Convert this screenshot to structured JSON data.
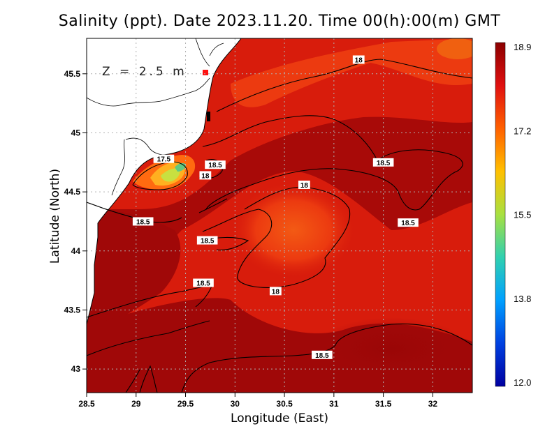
{
  "title": "Salinity (ppt). Date 2023.11.20. Time 00(h):00(m) GMT",
  "depth_label": "Z = 2.5 m",
  "x_axis": {
    "title": "Longitude (East)",
    "ticks": [
      "28.5",
      "29",
      "29.5",
      "30",
      "30.5",
      "31",
      "31.5",
      "32"
    ],
    "range": [
      28.5,
      32.4
    ]
  },
  "y_axis": {
    "title": "Latitude (North)",
    "ticks": [
      "43",
      "43.5",
      "44",
      "44.5",
      "45",
      "45.5"
    ],
    "range": [
      42.8,
      45.8
    ]
  },
  "colorbar": {
    "labels": [
      "18.9",
      "17.2",
      "15.5",
      "13.8",
      "12.0"
    ],
    "colors": [
      "#8b0000",
      "#e01010",
      "#ff6000",
      "#ffc000",
      "#a8e040",
      "#30d0b0",
      "#00a0ff",
      "#0040e0",
      "#0000a0"
    ]
  },
  "colors": {
    "land": "#ffffff",
    "sea_deep_red": "#a00808",
    "sea_red": "#d81c0c",
    "sea_orange": "#f04010",
    "grid": "#b0b0b0"
  },
  "contour_labels": [
    {
      "text": "18",
      "lon": 31.25,
      "lat": 45.62
    },
    {
      "text": "18.5",
      "lon": 31.5,
      "lat": 44.75
    },
    {
      "text": "18.5",
      "lon": 29.8,
      "lat": 44.73
    },
    {
      "text": "18",
      "lon": 29.7,
      "lat": 44.64
    },
    {
      "text": "17.5",
      "lon": 29.28,
      "lat": 44.78
    },
    {
      "text": "18",
      "lon": 30.7,
      "lat": 44.56
    },
    {
      "text": "18.5",
      "lon": 31.75,
      "lat": 44.24
    },
    {
      "text": "18.5",
      "lon": 29.07,
      "lat": 44.25
    },
    {
      "text": "18.5",
      "lon": 29.72,
      "lat": 44.09
    },
    {
      "text": "18.5",
      "lon": 29.68,
      "lat": 43.73
    },
    {
      "text": "18",
      "lon": 30.41,
      "lat": 43.66
    },
    {
      "text": "18.5",
      "lon": 30.88,
      "lat": 43.12
    }
  ]
}
